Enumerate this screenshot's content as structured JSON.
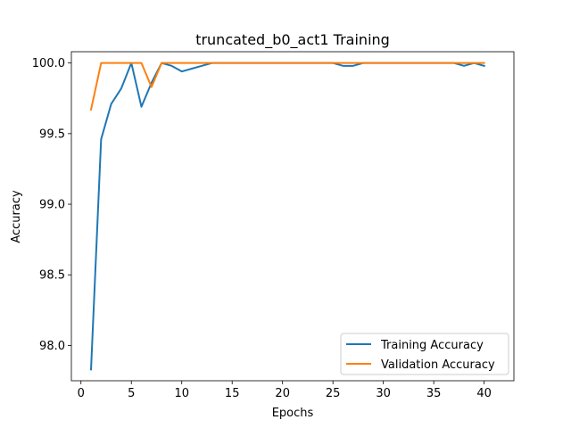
{
  "chart_data": {
    "type": "line",
    "title": "truncated_b0_act1 Training",
    "xlabel": "Epochs",
    "ylabel": "Accuracy",
    "xlim": [
      -0.95,
      42.95
    ],
    "ylim": [
      97.75,
      100.08
    ],
    "xticks": [
      0,
      5,
      10,
      15,
      20,
      25,
      30,
      35,
      40
    ],
    "yticks": [
      98.0,
      98.5,
      99.0,
      99.5,
      100.0
    ],
    "ytick_labels": [
      "98.0",
      "98.5",
      "99.0",
      "99.5",
      "100.0"
    ],
    "grid": false,
    "legend_position": "lower-right",
    "x": [
      1,
      2,
      3,
      4,
      5,
      6,
      7,
      8,
      9,
      10,
      11,
      12,
      13,
      14,
      15,
      16,
      17,
      18,
      19,
      20,
      21,
      22,
      23,
      24,
      25,
      26,
      27,
      28,
      29,
      30,
      31,
      32,
      33,
      34,
      35,
      36,
      37,
      38,
      39,
      40
    ],
    "series": [
      {
        "name": "Training Accuracy",
        "color": "#1f77b4",
        "values": [
          97.83,
          99.46,
          99.71,
          99.82,
          100.0,
          99.69,
          99.86,
          100.0,
          99.98,
          99.94,
          99.96,
          99.98,
          100.0,
          100.0,
          100.0,
          100.0,
          100.0,
          100.0,
          100.0,
          100.0,
          100.0,
          100.0,
          100.0,
          100.0,
          100.0,
          99.98,
          99.98,
          100.0,
          100.0,
          100.0,
          100.0,
          100.0,
          100.0,
          100.0,
          100.0,
          100.0,
          100.0,
          99.98,
          100.0,
          99.98
        ]
      },
      {
        "name": "Validation Accuracy",
        "color": "#ff7f0e",
        "values": [
          99.67,
          100.0,
          100.0,
          100.0,
          100.0,
          100.0,
          99.83,
          100.0,
          100.0,
          100.0,
          100.0,
          100.0,
          100.0,
          100.0,
          100.0,
          100.0,
          100.0,
          100.0,
          100.0,
          100.0,
          100.0,
          100.0,
          100.0,
          100.0,
          100.0,
          100.0,
          100.0,
          100.0,
          100.0,
          100.0,
          100.0,
          100.0,
          100.0,
          100.0,
          100.0,
          100.0,
          100.0,
          100.0,
          100.0,
          100.0
        ]
      }
    ]
  }
}
